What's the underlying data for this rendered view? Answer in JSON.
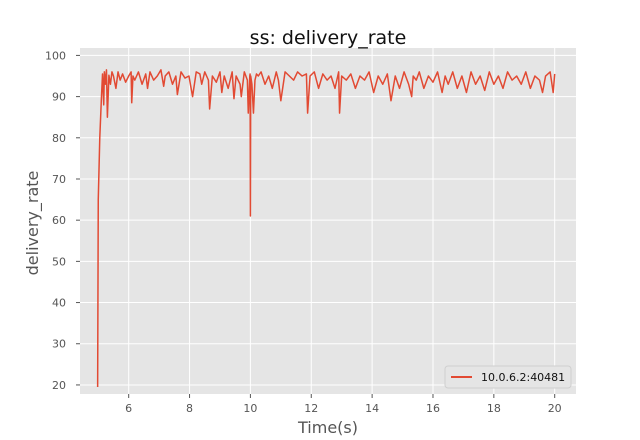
{
  "chart_data": {
    "type": "line",
    "title": "ss: delivery_rate",
    "xlabel": "Time(s)",
    "ylabel": "delivery_rate",
    "xlim": [
      4.4,
      20.7
    ],
    "ylim": [
      17.8,
      101.8
    ],
    "xticks": [
      6,
      8,
      10,
      12,
      14,
      16,
      18,
      20
    ],
    "yticks": [
      20,
      30,
      40,
      50,
      60,
      70,
      80,
      90,
      100
    ],
    "xtick_labels": [
      "6",
      "8",
      "10",
      "12",
      "14",
      "16",
      "18",
      "20"
    ],
    "ytick_labels": [
      "20",
      "30",
      "40",
      "50",
      "60",
      "70",
      "80",
      "90",
      "100"
    ],
    "grid": true,
    "legend_position": "bottom-right",
    "series": [
      {
        "name": "10.0.6.2:40481",
        "color": "#e24a33",
        "x": [
          4.98,
          5.0,
          5.05,
          5.1,
          5.14,
          5.18,
          5.2,
          5.23,
          5.27,
          5.3,
          5.35,
          5.4,
          5.45,
          5.5,
          5.58,
          5.65,
          5.72,
          5.8,
          5.9,
          6.0,
          6.08,
          6.1,
          6.14,
          6.2,
          6.32,
          6.44,
          6.56,
          6.62,
          6.7,
          6.82,
          6.94,
          7.06,
          7.15,
          7.2,
          7.32,
          7.44,
          7.55,
          7.6,
          7.72,
          7.85,
          7.98,
          8.1,
          8.22,
          8.34,
          8.4,
          8.5,
          8.62,
          8.66,
          8.75,
          8.88,
          9.0,
          9.06,
          9.14,
          9.27,
          9.4,
          9.46,
          9.53,
          9.66,
          9.7,
          9.8,
          9.9,
          9.93,
          9.98,
          9.99,
          10.0,
          10.01,
          10.05,
          10.1,
          10.15,
          10.2,
          10.26,
          10.35,
          10.48,
          10.6,
          10.72,
          10.85,
          10.92,
          11.0,
          11.14,
          11.28,
          11.42,
          11.55,
          11.7,
          11.84,
          11.88,
          11.96,
          12.1,
          12.24,
          12.38,
          12.52,
          12.65,
          12.78,
          12.9,
          12.93,
          13.0,
          13.15,
          13.3,
          13.45,
          13.6,
          13.75,
          13.9,
          14.05,
          14.2,
          14.35,
          14.5,
          14.62,
          14.76,
          14.9,
          15.05,
          15.2,
          15.3,
          15.35,
          15.45,
          15.55,
          15.7,
          15.85,
          16.0,
          16.15,
          16.3,
          16.4,
          16.5,
          16.65,
          16.8,
          16.95,
          17.1,
          17.25,
          17.4,
          17.55,
          17.7,
          17.85,
          18.0,
          18.15,
          18.3,
          18.45,
          18.6,
          18.75,
          18.9,
          19.05,
          19.2,
          19.35,
          19.5,
          19.6,
          19.7,
          19.85,
          19.95,
          20.0
        ],
        "y": [
          19.5,
          65.0,
          80.0,
          89.0,
          95.5,
          88.0,
          96.0,
          93.0,
          96.5,
          85.0,
          95.2,
          93.0,
          96.0,
          95.0,
          92.0,
          96.0,
          94.0,
          95.5,
          93.5,
          95.0,
          96.0,
          88.5,
          95.0,
          94.0,
          96.0,
          93.0,
          95.5,
          92.0,
          96.0,
          94.0,
          95.0,
          96.5,
          92.5,
          95.0,
          96.0,
          93.0,
          95.0,
          90.5,
          96.0,
          94.5,
          95.0,
          90.0,
          96.0,
          95.5,
          93.0,
          96.0,
          94.0,
          87.0,
          95.0,
          93.5,
          96.0,
          91.0,
          95.0,
          92.0,
          96.0,
          89.5,
          95.0,
          93.0,
          90.0,
          96.0,
          94.0,
          86.0,
          95.0,
          95.5,
          61.0,
          95.0,
          93.0,
          86.0,
          94.0,
          95.5,
          95.0,
          96.0,
          93.0,
          95.0,
          92.0,
          96.0,
          94.0,
          89.0,
          96.0,
          95.0,
          94.0,
          96.0,
          95.0,
          95.5,
          86.0,
          95.0,
          96.0,
          92.0,
          95.5,
          94.0,
          95.0,
          92.0,
          96.0,
          86.0,
          95.0,
          94.0,
          95.5,
          92.0,
          95.0,
          94.0,
          96.0,
          91.0,
          95.0,
          93.0,
          95.5,
          89.0,
          95.0,
          92.0,
          96.0,
          93.0,
          90.0,
          95.0,
          94.0,
          96.0,
          92.0,
          95.0,
          93.5,
          96.0,
          91.0,
          95.0,
          93.0,
          96.0,
          92.0,
          95.0,
          91.0,
          96.0,
          93.0,
          95.0,
          91.5,
          96.0,
          93.0,
          95.0,
          92.0,
          96.0,
          94.0,
          95.0,
          93.0,
          96.0,
          92.0,
          95.0,
          94.0,
          91.0,
          95.0,
          96.0,
          91.0,
          95.5
        ]
      }
    ]
  }
}
